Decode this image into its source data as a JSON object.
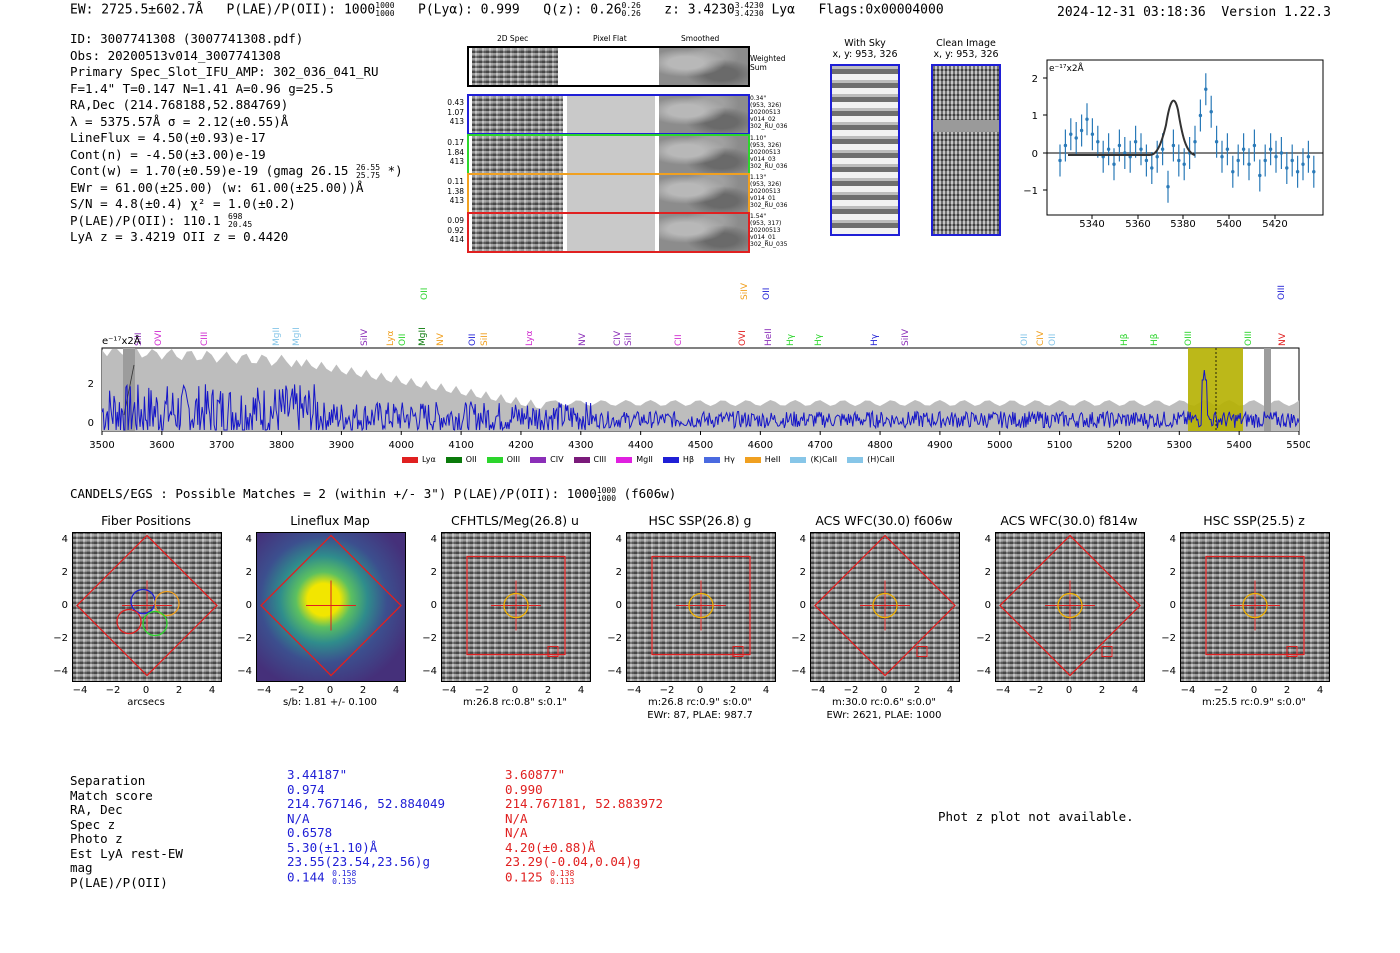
{
  "header": {
    "ew": "EW: 2725.5±602.7Å",
    "plae_label": "P(LAE)/P(OII): 1000",
    "plae_sup": "1000",
    "plae_sub": "1000",
    "plya": "P(Lyα): 0.999",
    "qz_label": "Q(z): 0.26",
    "qz_sup": "0.26",
    "qz_sub": "0.26",
    "z_label": "z: 3.4230",
    "z_sup": "3.4230",
    "z_sub": "3.4230",
    "z_line": "Lyα",
    "flags": "Flags:0x00004000",
    "datetime": "2024-12-31 03:18:36",
    "version": "Version 1.22.3"
  },
  "info": {
    "id": "ID: 3007741308 (3007741308.pdf)",
    "obs": "Obs: 20200513v014_3007741308",
    "primary": "Primary Spec_Slot_IFU_AMP: 302_036_041_RU",
    "params": "F=1.4\"  T=0.147  N=1.41  A=0.96  g=25.5",
    "radec": "RA,Dec (214.768188,52.884769)",
    "lambda": "λ = 5375.57Å  σ = 2.12(±0.55)Å",
    "lineflux": "LineFlux = 4.50(±0.93)e-17",
    "contn": "Cont(n) = -4.50(±3.00)e-19",
    "contw": "Cont(w) = 1.70(±0.59)e-19 (gmag 26.15",
    "contw_sup": "26.55",
    "contw_sub": "25.75",
    "contw_end": "*)",
    "ewr": "EWr = 61.00(±25.00) (w: 61.00(±25.00))Å",
    "sn": "S/N = 4.8(±0.4)  χ² = 1.0(±0.2)",
    "plae": "P(LAE)/P(OII): 110.1",
    "plae_sup": "698",
    "plae_sub": "20.45",
    "lyaz": "LyA z = 3.4219  OII z = 0.4420"
  },
  "spec2d": {
    "col_titles": [
      "2D Spec",
      "Pixel Flat",
      "Smoothed"
    ],
    "weighted_label": "Weighted Sum",
    "rows": [
      {
        "left": [
          "0.43",
          "1.07",
          "413"
        ],
        "right": [
          "0.34\"",
          "(953, 326)",
          "20200513",
          "v014_02",
          "302_RU_036"
        ],
        "color": "#1f1fd6"
      },
      {
        "left": [
          "0.17",
          "1.84",
          "413"
        ],
        "right": [
          "1.10\"",
          "(953, 326)",
          "20200513",
          "v014_03",
          "302_RU_036"
        ],
        "color": "#2cd52c"
      },
      {
        "left": [
          "0.11",
          "1.38",
          "413"
        ],
        "right": [
          "1.13\"",
          "(953, 326)",
          "20200513",
          "v014_01",
          "302_RU_036"
        ],
        "color": "#f0a020"
      },
      {
        "left": [
          "0.09",
          "0.92",
          "414"
        ],
        "right": [
          "1.54\"",
          "(953, 317)",
          "20200513",
          "v014_01",
          "302_RU_035"
        ],
        "color": "#e02020"
      }
    ]
  },
  "cutouts": {
    "with_sky": "With Sky",
    "with_sky_xy": "x, y: 953, 326",
    "clean": "Clean Image",
    "clean_xy": "x, y: 953, 326"
  },
  "zoom_chart": {
    "ylabel": "e⁻¹⁷x2Å",
    "xticks": [
      "5340",
      "5360",
      "5380",
      "5400",
      "5420"
    ],
    "yticks": [
      "2",
      "1",
      "0",
      "−1"
    ]
  },
  "full_spec": {
    "ylabel": "e⁻¹⁷x2Å",
    "yticks": [
      "2",
      "0"
    ],
    "xticks": [
      "3500",
      "3600",
      "3700",
      "3800",
      "3900",
      "4000",
      "4100",
      "4200",
      "4300",
      "4400",
      "4500",
      "4600",
      "4700",
      "4800",
      "4900",
      "5000",
      "5100",
      "5200",
      "5300",
      "5400",
      "5500"
    ],
    "line_labels": [
      {
        "t": "SiII",
        "c": "#8b2fb8"
      },
      {
        "t": "OVI",
        "c": "#d02bd0"
      },
      {
        "t": "CIII",
        "c": "#d02bd0"
      },
      {
        "t": "MgII",
        "c": "#87c6e8"
      },
      {
        "t": "MgII",
        "c": "#87c6e8"
      },
      {
        "t": "SiIV",
        "c": "#8b2fb8"
      },
      {
        "t": "Lyα",
        "c": "#f0a020"
      },
      {
        "t": "OII",
        "c": "#2cd52c"
      },
      {
        "t": "MgII",
        "c": "#0a7a0a"
      },
      {
        "t": "OII",
        "c": "#2cd52c"
      },
      {
        "t": "NV",
        "c": "#f0a020"
      },
      {
        "t": "OII",
        "c": "#1f1fd6"
      },
      {
        "t": "SiII",
        "c": "#f0a020"
      },
      {
        "t": "Lyα",
        "c": "#d02bd0"
      },
      {
        "t": "NV",
        "c": "#8b2fb8"
      },
      {
        "t": "CIV",
        "c": "#8b2fb8"
      },
      {
        "t": "SiII",
        "c": "#8b2fb8"
      },
      {
        "t": "CII",
        "c": "#d02bd0"
      },
      {
        "t": "SiIV",
        "c": "#f0a020"
      },
      {
        "t": "OVI",
        "c": "#e02020"
      },
      {
        "t": "OII",
        "c": "#1f1fd6"
      },
      {
        "t": "HeII",
        "c": "#8b2fb8"
      },
      {
        "t": "Hγ",
        "c": "#2cd52c"
      },
      {
        "t": "Hγ",
        "c": "#2cd52c"
      },
      {
        "t": "Hγ",
        "c": "#1f1fd6"
      },
      {
        "t": "SiIV",
        "c": "#8b2fb8"
      },
      {
        "t": "OII",
        "c": "#87c6e8"
      },
      {
        "t": "CIV",
        "c": "#f0a020"
      },
      {
        "t": "OII",
        "c": "#87c6e8"
      },
      {
        "t": "Hβ",
        "c": "#2cd52c"
      },
      {
        "t": "Hβ",
        "c": "#2cd52c"
      },
      {
        "t": "OIII",
        "c": "#2cd52c"
      },
      {
        "t": "OIII",
        "c": "#2cd52c"
      },
      {
        "t": "NV",
        "c": "#e02020"
      },
      {
        "t": "OIII",
        "c": "#1f1fd6"
      }
    ],
    "legend": [
      {
        "t": "Lyα",
        "c": "#e02020"
      },
      {
        "t": "OII",
        "c": "#0a7a0a"
      },
      {
        "t": "OIII",
        "c": "#2cd52c"
      },
      {
        "t": "CIV",
        "c": "#8b2fb8"
      },
      {
        "t": "CIII",
        "c": "#7a1a7a"
      },
      {
        "t": "MgII",
        "c": "#e020e0"
      },
      {
        "t": "Hβ",
        "c": "#1f1fd6"
      },
      {
        "t": "Hγ",
        "c": "#4a6ae0"
      },
      {
        "t": "HeII",
        "c": "#f0a020"
      },
      {
        "t": "(K)CaII",
        "c": "#87c6e8"
      },
      {
        "t": "(H)CaII",
        "c": "#87c6e8"
      }
    ]
  },
  "candels": {
    "title": "CANDELS/EGS : Possible Matches = 2 (within +/- 3\")  P(LAE)/P(OII): 1000",
    "sup": "1000",
    "sub": "1000",
    "tail": "(f606w)"
  },
  "panels": [
    {
      "title": "Fiber Positions",
      "line1": "arcsecs",
      "line2": ""
    },
    {
      "title": "Lineflux Map",
      "line1": "s/b: 1.81 +/- 0.100",
      "line2": ""
    },
    {
      "title": "CFHTLS/Meg(26.8) u",
      "line1": "m:26.8 rc:0.8\"  s:0.1\"",
      "line2": ""
    },
    {
      "title": "HSC SSP(26.8) g",
      "line1": "m:26.8 rc:0.9\"  s:0.0\"",
      "line2": "EWr: 87, PLAE: 987.7"
    },
    {
      "title": "ACS WFC(30.0) f606w",
      "line1": "m:30.0 rc:0.6\"  s:0.0\"",
      "line2": "EWr: 2621, PLAE: 1000"
    },
    {
      "title": "ACS WFC(30.0) f814w",
      "line1": "",
      "line2": ""
    },
    {
      "title": "HSC SSP(25.5) z",
      "line1": "m:25.5 rc:0.9\"  s:0.0\"",
      "line2": ""
    }
  ],
  "panel_ticks": {
    "x": [
      "−4",
      "−2",
      "0",
      "2",
      "4"
    ],
    "y": [
      "4",
      "2",
      "0",
      "−2",
      "−4"
    ]
  },
  "table": {
    "labels": [
      "Separation",
      "Match score",
      "RA, Dec",
      "Spec z",
      "Photo z",
      "Est LyA rest-EW",
      "mag",
      "P(LAE)/P(OII)"
    ],
    "col1": {
      "color": "#1f1fd6",
      "values": [
        "3.44187\"",
        "0.974",
        "214.767146, 52.884049",
        "N/A",
        "0.6578",
        "5.30(±1.10)Å",
        "23.55(23.54,23.56)g",
        "0.144"
      ],
      "plae_sup": "0.158",
      "plae_sub": "0.135"
    },
    "col2": {
      "color": "#e02020",
      "values": [
        "3.60877\"",
        "0.990",
        "214.767181, 52.883972",
        "N/A",
        "N/A",
        "4.20(±0.88)Å",
        "23.29(-0.04,0.04)g",
        "0.125"
      ],
      "plae_sup": "0.138",
      "plae_sub": "0.113"
    },
    "photz_msg": "Phot z plot not available."
  }
}
